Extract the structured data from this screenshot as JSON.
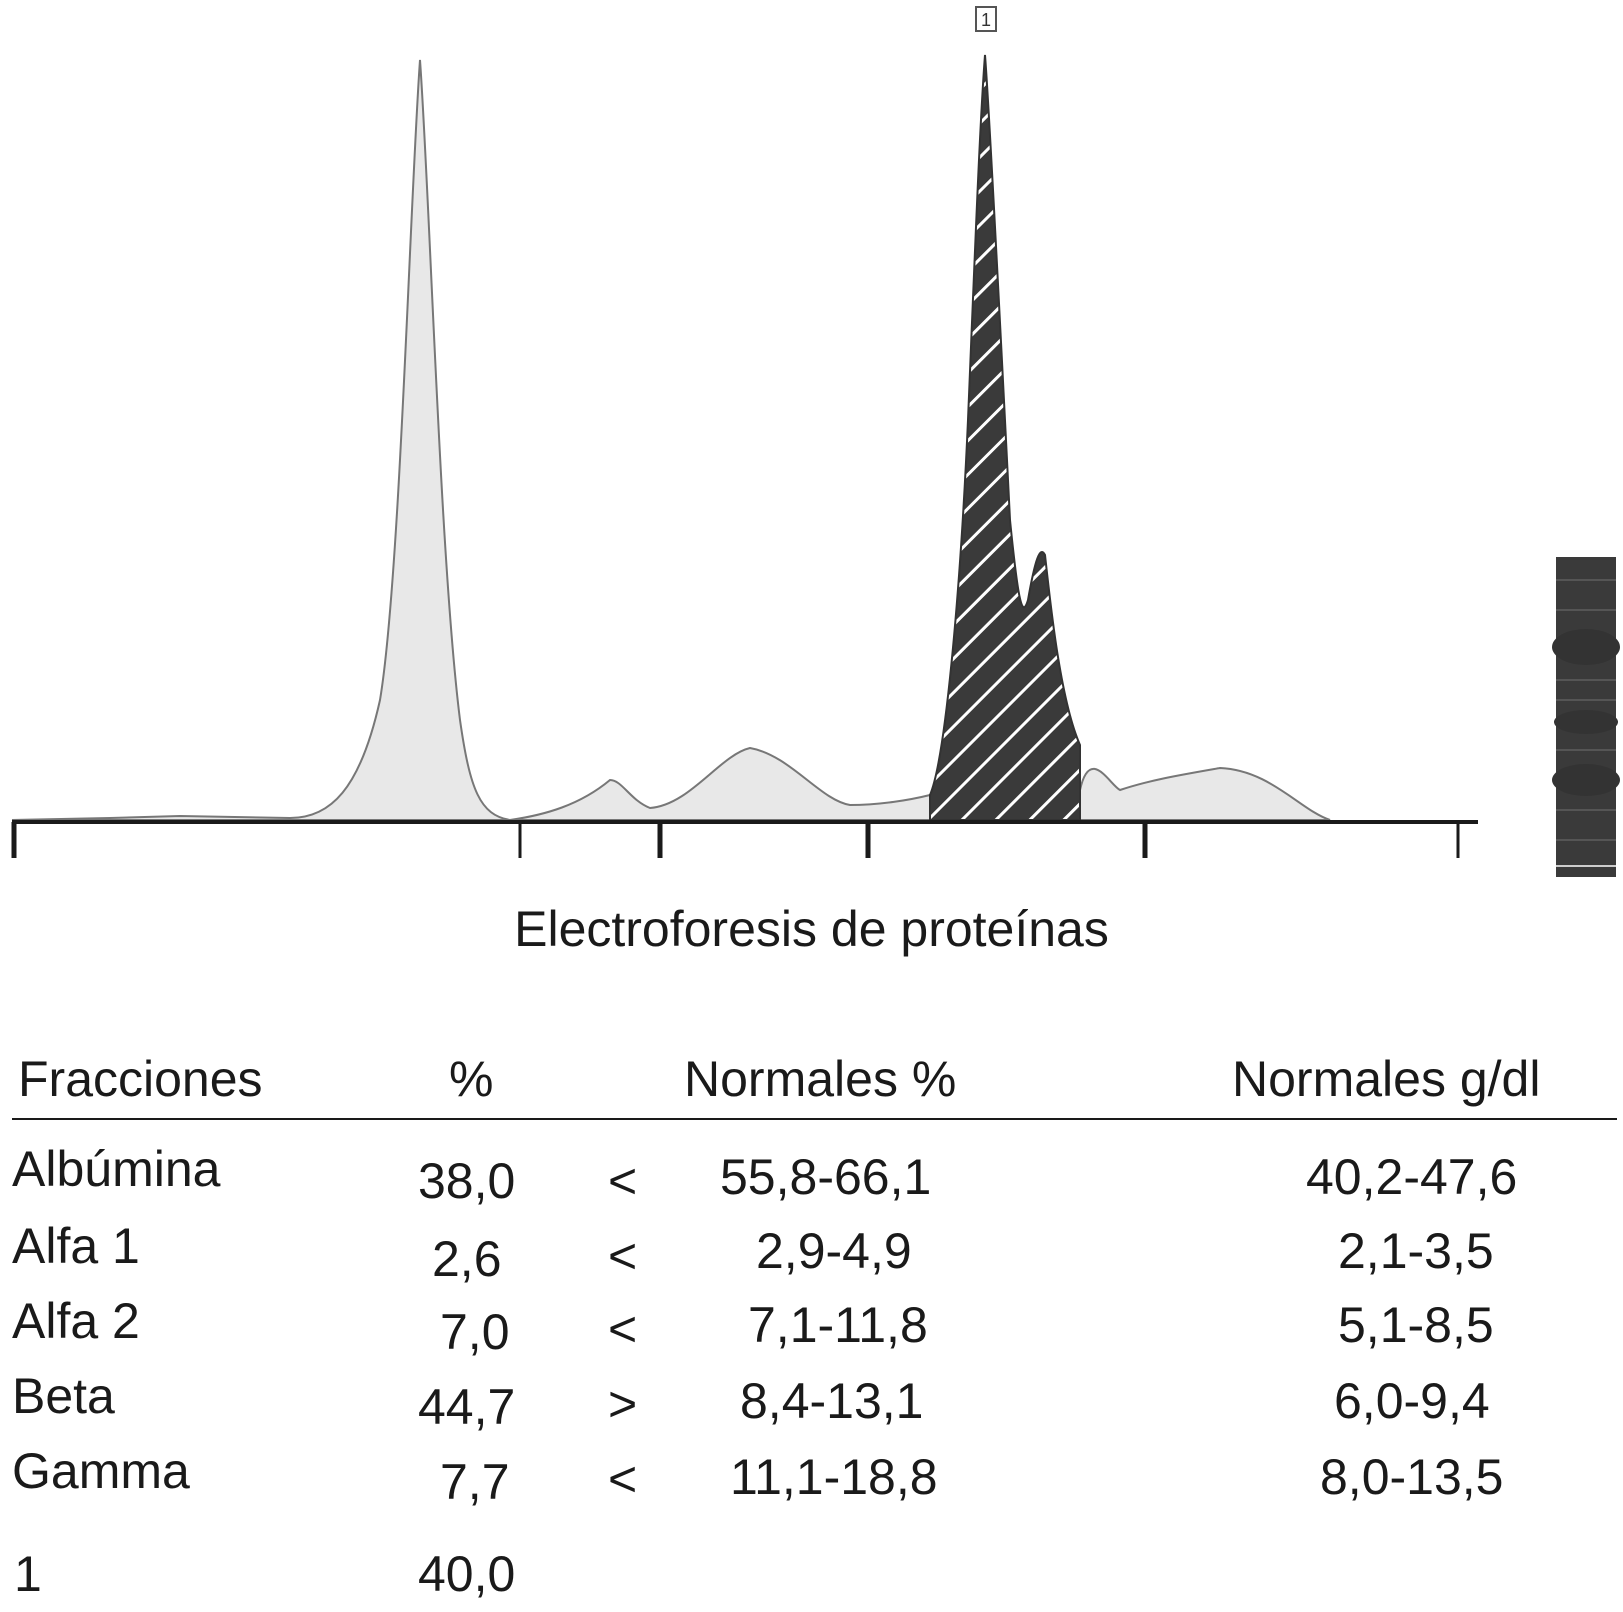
{
  "chart_data": {
    "type": "area",
    "title": "Electroforesis de proteínas",
    "peak_marker": "1",
    "fractions": [
      "Albúmina",
      "Alfa 1",
      "Alfa 2",
      "Beta",
      "Gamma"
    ],
    "highlighted_fraction": "Beta",
    "colors": {
      "curve_fill": "#e8e8e8",
      "curve_stroke": "#777777",
      "highlight_fill": "#3a3a3a",
      "axis": "#1a1a1a"
    }
  },
  "table": {
    "headers": {
      "fractions": "Fracciones",
      "percent": "%",
      "normal_percent": "Normales %",
      "normal_gdl": "Normales g/dl"
    },
    "rows": [
      {
        "name": "Albúmina",
        "percent": "38,0",
        "cmp": "<",
        "normal_percent": "55,8-66,1",
        "normal_gdl": "40,2-47,6"
      },
      {
        "name": "Alfa 1",
        "percent": "2,6",
        "cmp": "<",
        "normal_percent": "2,9-4,9",
        "normal_gdl": "2,1-3,5"
      },
      {
        "name": "Alfa 2",
        "percent": "7,0",
        "cmp": "<",
        "normal_percent": "7,1-11,8",
        "normal_gdl": "5,1-8,5"
      },
      {
        "name": "Beta",
        "percent": "44,7",
        "cmp": ">",
        "normal_percent": "8,4-13,1",
        "normal_gdl": "6,0-9,4"
      },
      {
        "name": "Gamma",
        "percent": "7,7",
        "cmp": "<",
        "normal_percent": "11,1-18,8",
        "normal_gdl": "8,0-13,5"
      }
    ],
    "extra_row": {
      "name": "1",
      "percent": "40,0"
    }
  }
}
